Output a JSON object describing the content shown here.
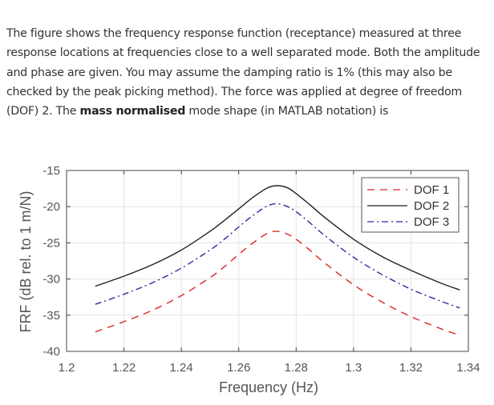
{
  "question": {
    "text_before_bold": "The figure shows the frequency response function (receptance) measured at three response locations at frequencies close to a well separated mode. Both the amplitude and phase are given. You may assume the damping ratio is 1% (this may also be checked by the peak picking method).  The force was applied at degree of freedom (DOF) 2. The ",
    "bold": "mass normalised",
    "text_after_bold": " mode shape (in MATLAB notation) is"
  },
  "chart_data": {
    "type": "line",
    "title": "",
    "xlabel": "Frequency (Hz)",
    "ylabel": "FRF (dB rel. to 1 m/N)",
    "xlim": [
      1.2,
      1.34
    ],
    "ylim": [
      -40,
      -15
    ],
    "xticks": [
      1.2,
      1.22,
      1.24,
      1.26,
      1.28,
      1.3,
      1.32,
      1.34
    ],
    "xtick_labels": [
      "1.2",
      "1.22",
      "1.24",
      "1.26",
      "1.28",
      "1.3",
      "1.32",
      "1.34"
    ],
    "yticks": [
      -15,
      -20,
      -25,
      -30,
      -35,
      -40
    ],
    "ytick_labels": [
      "-15",
      "-20",
      "-25",
      "-30",
      "-35",
      "-40"
    ],
    "grid": true,
    "legend_position": "top-right",
    "x": [
      1.21,
      1.22,
      1.23,
      1.24,
      1.25,
      1.255,
      1.26,
      1.265,
      1.27,
      1.2735,
      1.277,
      1.28,
      1.285,
      1.29,
      1.3,
      1.31,
      1.32,
      1.33,
      1.337
    ],
    "series": [
      {
        "name": "DOF 1",
        "color": "#d62728",
        "style": "dashed",
        "values": [
          -37.3,
          -35.9,
          -34.3,
          -32.3,
          -29.8,
          -28.3,
          -26.6,
          -25.0,
          -23.7,
          -23.4,
          -23.8,
          -24.5,
          -26.1,
          -27.8,
          -30.8,
          -33.2,
          -35.2,
          -36.8,
          -37.8
        ]
      },
      {
        "name": "DOF 2",
        "color": "#222222",
        "style": "solid",
        "values": [
          -31.0,
          -29.6,
          -28.0,
          -26.0,
          -23.4,
          -21.9,
          -20.3,
          -18.7,
          -17.4,
          -17.1,
          -17.4,
          -18.2,
          -19.8,
          -21.5,
          -24.5,
          -26.9,
          -28.8,
          -30.5,
          -31.5
        ]
      },
      {
        "name": "DOF 3",
        "color": "#2a2aa0",
        "style": "dashdot",
        "values": [
          -33.5,
          -32.1,
          -30.5,
          -28.5,
          -26.0,
          -24.5,
          -22.8,
          -21.2,
          -19.9,
          -19.6,
          -20.0,
          -20.7,
          -22.3,
          -24.0,
          -27.0,
          -29.4,
          -31.4,
          -33.0,
          -34.0
        ]
      }
    ]
  }
}
